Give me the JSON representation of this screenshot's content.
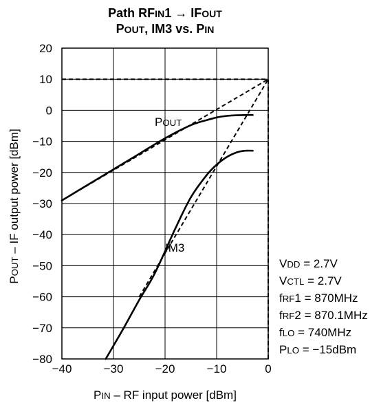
{
  "chart_data": {
    "type": "line",
    "title_lines": [
      "Path RFIN1 → IFOUT",
      "POUT, IM3 vs. PIN"
    ],
    "title_rich": [
      [
        {
          "t": "Path RF",
          "sub": false
        },
        {
          "t": "IN",
          "sub": true
        },
        {
          "t": "1 → IF",
          "sub": false
        },
        {
          "t": "OUT",
          "sub": true
        }
      ],
      [
        {
          "t": "P",
          "sub": false
        },
        {
          "t": "OUT",
          "sub": true
        },
        {
          "t": ", IM3 vs. P",
          "sub": false
        },
        {
          "t": "IN",
          "sub": true
        }
      ]
    ],
    "xlabel": "PIN – RF input power [dBm]",
    "xlabel_rich": [
      {
        "t": "P",
        "sub": false
      },
      {
        "t": "IN",
        "sub": true
      },
      {
        "t": " – RF input power [dBm]",
        "sub": false
      }
    ],
    "ylabel": "POUT – IF output power [dBm]",
    "ylabel_rich": [
      {
        "t": "P",
        "sub": false
      },
      {
        "t": "OUT",
        "sub": true
      },
      {
        "t": " – IF output power [dBm]",
        "sub": false
      }
    ],
    "xlim": [
      -40,
      0
    ],
    "ylim": [
      -80,
      20
    ],
    "xticks": [
      -40,
      -30,
      -20,
      -10,
      0
    ],
    "yticks": [
      -80,
      -70,
      -60,
      -50,
      -40,
      -30,
      -20,
      -10,
      0,
      10,
      20
    ],
    "xtick_labels": [
      "−40",
      "−30",
      "−20",
      "−10",
      "0"
    ],
    "ytick_labels": [
      "−80",
      "−70",
      "−60",
      "−50",
      "−40",
      "−30",
      "−20",
      "−10",
      "0",
      "10",
      "20"
    ],
    "grid": true,
    "series": [
      {
        "name": "POUT",
        "style": "solid",
        "x": [
          -40,
          -35,
          -30,
          -25,
          -20,
          -15,
          -12,
          -10,
          -8,
          -6,
          -4,
          -3
        ],
        "y": [
          -29,
          -24,
          -19,
          -14,
          -9,
          -4.8,
          -3.2,
          -2.3,
          -1.8,
          -1.6,
          -1.5,
          -1.5
        ]
      },
      {
        "name": "IM3",
        "style": "solid",
        "x": [
          -31.5,
          -28,
          -25,
          -22,
          -18,
          -15,
          -12,
          -10,
          -8,
          -6,
          -4.5,
          -3
        ],
        "y": [
          -80,
          -70,
          -61,
          -52.5,
          -38,
          -28,
          -21,
          -17.5,
          -15,
          -13.5,
          -13,
          -13
        ]
      }
    ],
    "reference_lines": [
      {
        "style": "dashed",
        "x": [
          -40,
          0
        ],
        "y": [
          -29,
          10
        ]
      },
      {
        "style": "dashed",
        "x": [
          -25,
          0
        ],
        "y": [
          -60,
          10
        ]
      },
      {
        "style": "dashed",
        "x": [
          -40,
          0
        ],
        "y": [
          10,
          10
        ]
      },
      {
        "style": "dashed",
        "x": [
          0,
          0
        ],
        "y": [
          -80,
          10
        ]
      }
    ],
    "series_labels": [
      {
        "parts": [
          {
            "t": "P",
            "sub": false
          },
          {
            "t": "OUT",
            "sub": true
          }
        ],
        "x": -22,
        "y": -5
      },
      {
        "parts": [
          {
            "t": "IM3",
            "sub": false
          }
        ],
        "x": -20,
        "y": -45.5
      }
    ],
    "conditions": [
      [
        {
          "t": "V",
          "sub": false
        },
        {
          "t": "DD",
          "sub": true
        },
        {
          "t": " = 2.7V",
          "sub": false
        }
      ],
      [
        {
          "t": "V",
          "sub": false
        },
        {
          "t": "CTL",
          "sub": true
        },
        {
          "t": " = 2.7V",
          "sub": false
        }
      ],
      [
        {
          "t": "f",
          "sub": false
        },
        {
          "t": "RF",
          "sub": true
        },
        {
          "t": "1 = 870MHz",
          "sub": false
        }
      ],
      [
        {
          "t": "f",
          "sub": false
        },
        {
          "t": "RF",
          "sub": true
        },
        {
          "t": "2 = 870.1MHz",
          "sub": false
        }
      ],
      [
        {
          "t": "f",
          "sub": false
        },
        {
          "t": "LO",
          "sub": true
        },
        {
          "t": " = 740MHz",
          "sub": false
        }
      ],
      [
        {
          "t": "P",
          "sub": false
        },
        {
          "t": "LO",
          "sub": true
        },
        {
          "t": " = −15dBm",
          "sub": false
        }
      ]
    ]
  }
}
